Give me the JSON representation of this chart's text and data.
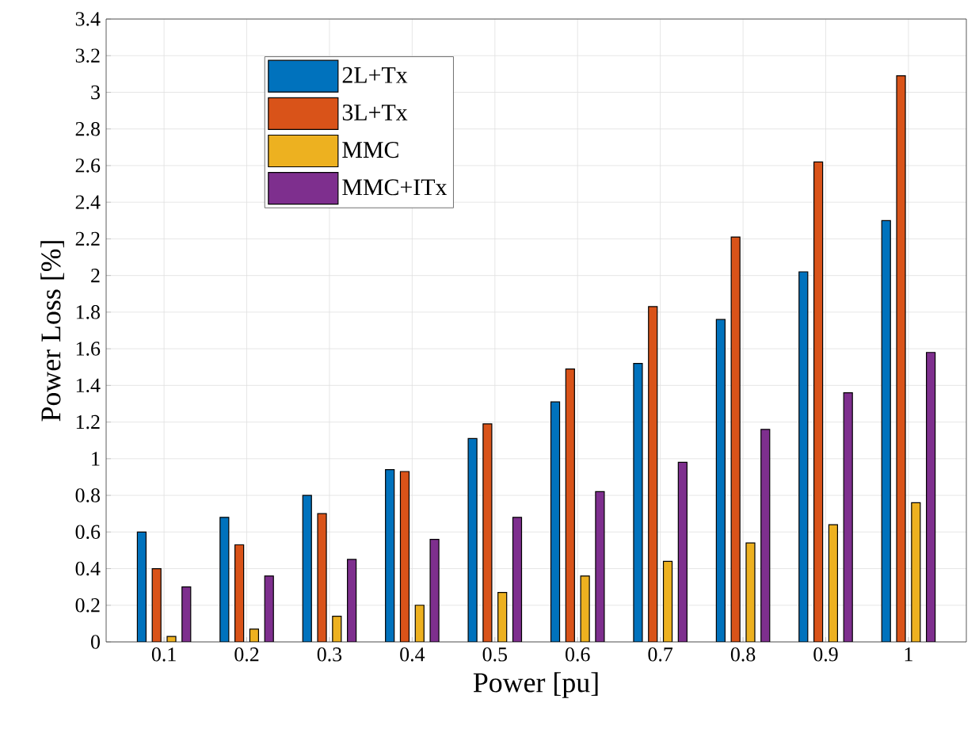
{
  "chart_data": {
    "type": "bar",
    "xlabel": "Power [pu]",
    "ylabel": "Power Loss [%]",
    "categories": [
      "0.1",
      "0.2",
      "0.3",
      "0.4",
      "0.5",
      "0.6",
      "0.7",
      "0.8",
      "0.9",
      "1"
    ],
    "series": [
      {
        "name": "2L+Tx",
        "color": "#0072bd",
        "values": [
          0.6,
          0.68,
          0.8,
          0.94,
          1.11,
          1.31,
          1.52,
          1.76,
          2.02,
          2.3
        ]
      },
      {
        "name": "3L+Tx",
        "color": "#d95319",
        "values": [
          0.4,
          0.53,
          0.7,
          0.93,
          1.19,
          1.49,
          1.83,
          2.21,
          2.62,
          3.09
        ]
      },
      {
        "name": "MMC",
        "color": "#edb120",
        "values": [
          0.03,
          0.07,
          0.14,
          0.2,
          0.27,
          0.36,
          0.44,
          0.54,
          0.64,
          0.76
        ]
      },
      {
        "name": "MMC+ITx",
        "color": "#7e2f8e",
        "values": [
          0.3,
          0.36,
          0.45,
          0.56,
          0.68,
          0.82,
          0.98,
          1.16,
          1.36,
          1.58
        ]
      }
    ],
    "ylim": [
      0,
      3.4
    ],
    "yticks": [
      0,
      0.2,
      0.4,
      0.6,
      0.8,
      1,
      1.2,
      1.4,
      1.6,
      1.8,
      2,
      2.2,
      2.4,
      2.6,
      2.8,
      3,
      3.2,
      3.4
    ],
    "grid": true,
    "legend": "top left"
  }
}
